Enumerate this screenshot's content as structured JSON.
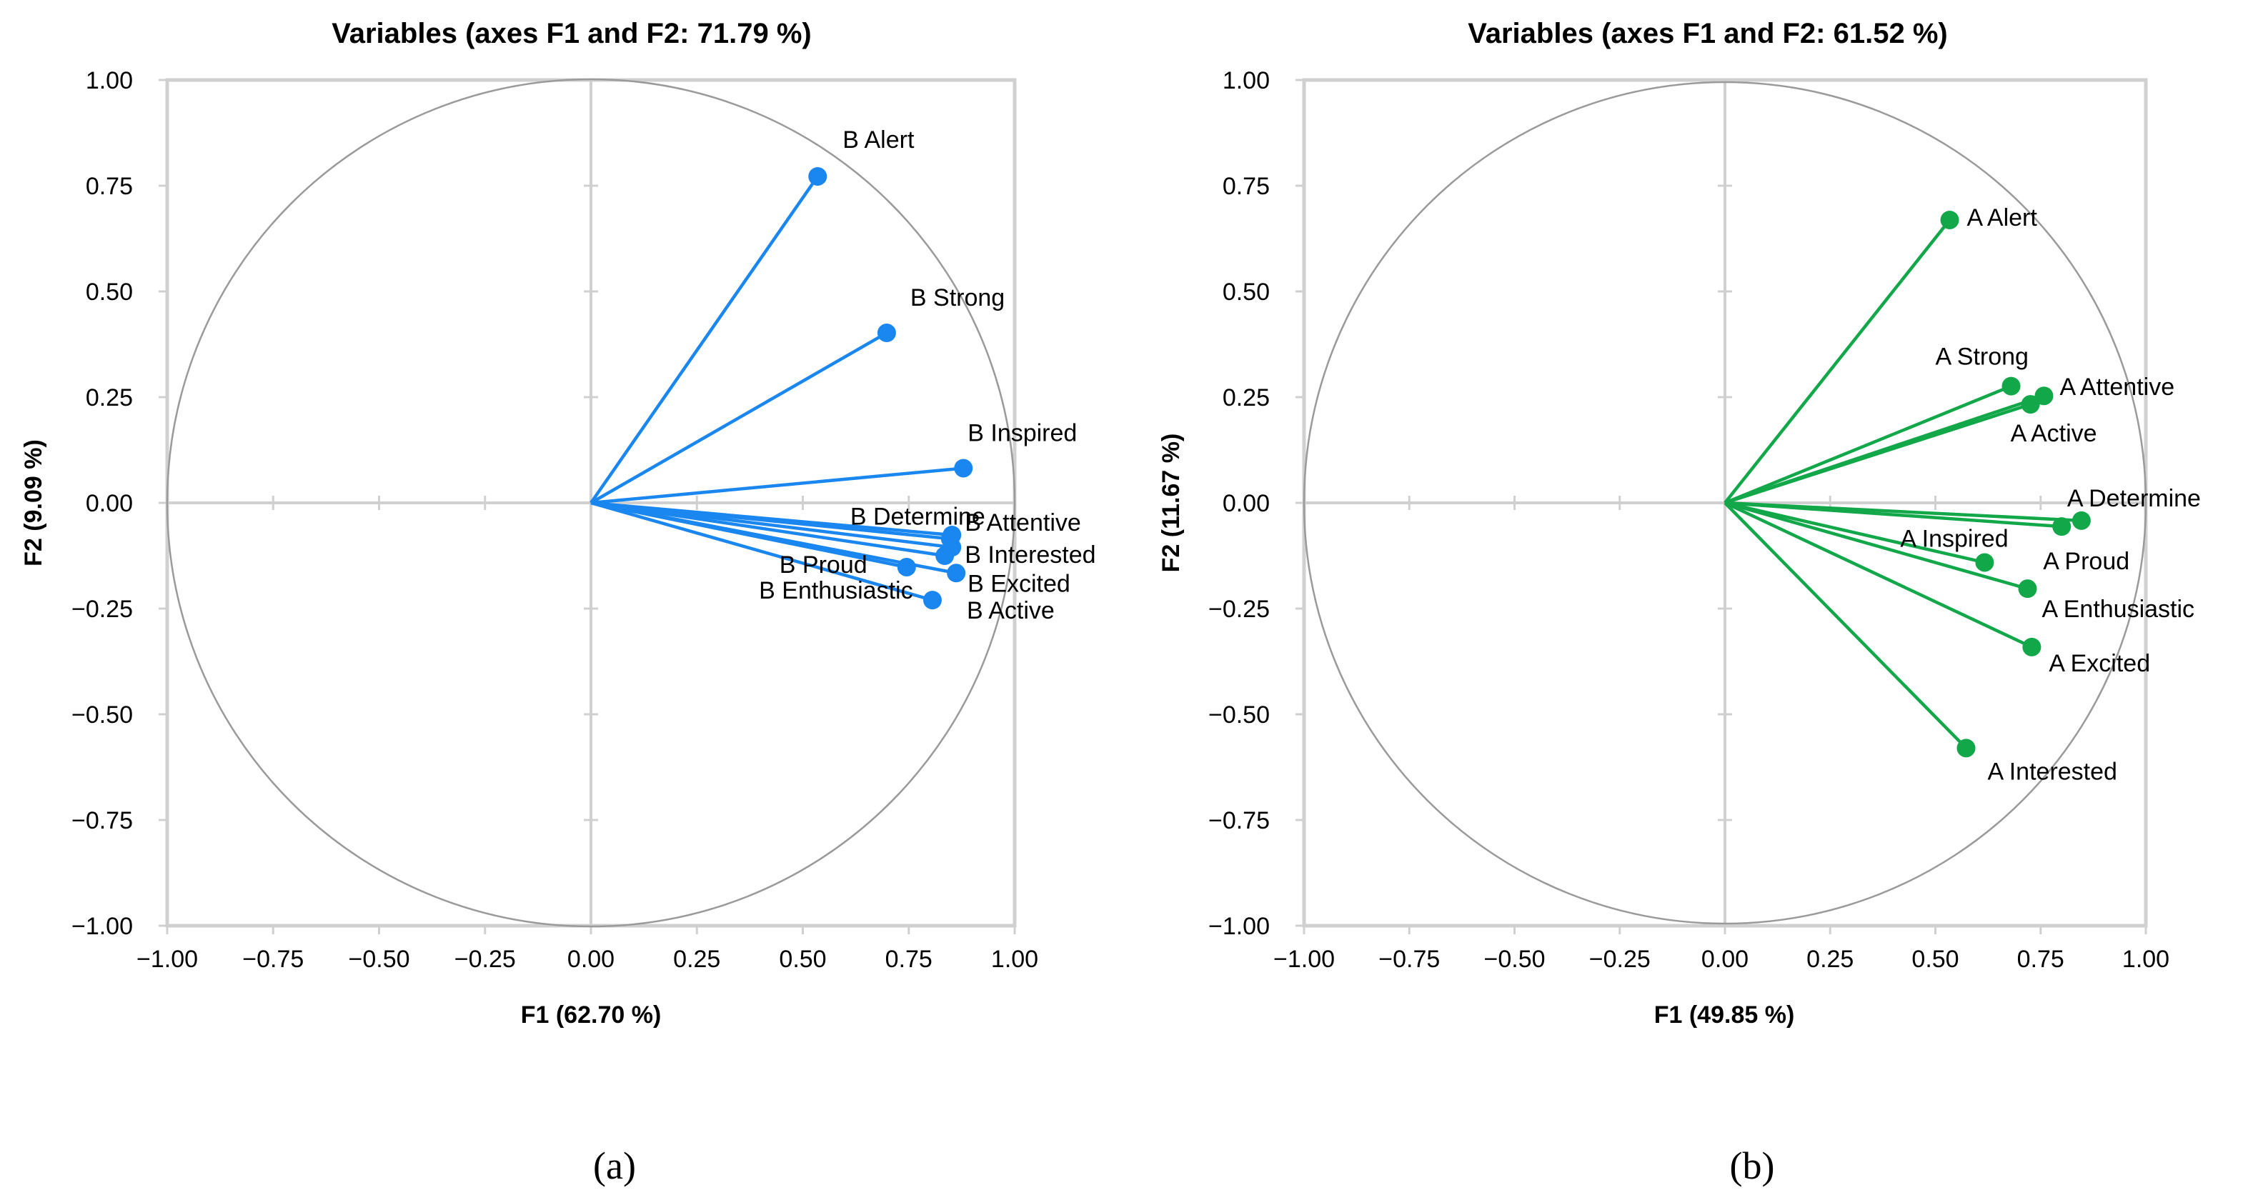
{
  "chart_data": [
    {
      "type": "scatter",
      "title": "Variables (axes F1 and F2: 71.79 %)",
      "xlabel": "F1 (62.70 %)",
      "ylabel": "F2 (9.09 %)",
      "xlim": [
        -1,
        1
      ],
      "ylim": [
        -1,
        1
      ],
      "xticks": [
        "−1.00",
        "−0.75",
        "−0.50",
        "−0.25",
        "0.00",
        "0.25",
        "0.50",
        "0.75",
        "1.00"
      ],
      "yticks": [
        "1.00",
        "0.75",
        "0.50",
        "0.25",
        "0.00",
        "−0.25",
        "−0.50",
        "−0.75",
        "−1.00"
      ],
      "grid": false,
      "correlation_circle": true,
      "vectors_from_origin": true,
      "color": "#1a87f0",
      "panel_label": "(a)",
      "points": [
        {
          "label": "B Alert",
          "x": 0.535,
          "y": 0.772
        },
        {
          "label": "B Strong",
          "x": 0.698,
          "y": 0.402
        },
        {
          "label": "B Inspired",
          "x": 0.879,
          "y": 0.082
        },
        {
          "label": "B Determine",
          "x": 0.848,
          "y": -0.085
        },
        {
          "label": "B Attentive",
          "x": 0.852,
          "y": -0.076
        },
        {
          "label": "B Interested",
          "x": 0.852,
          "y": -0.105
        },
        {
          "label": "B Proud",
          "x": 0.745,
          "y": -0.152
        },
        {
          "label": "B Excited",
          "x": 0.862,
          "y": -0.166
        },
        {
          "label": "B Active",
          "x": 0.806,
          "y": -0.23
        },
        {
          "label": "B Enthusiastic",
          "x": 0.835,
          "y": -0.125
        }
      ]
    },
    {
      "type": "scatter",
      "title": "Variables (axes F1 and F2: 61.52 %)",
      "xlabel": "F1 (49.85 %)",
      "ylabel": "F2 (11.67 %)",
      "xlim": [
        -1,
        1
      ],
      "ylim": [
        -1,
        1
      ],
      "xticks": [
        "−1.00",
        "−0.75",
        "−0.50",
        "−0.25",
        "0.00",
        "0.25",
        "0.50",
        "0.75",
        "1.00"
      ],
      "yticks": [
        "1.00",
        "0.75",
        "0.50",
        "0.25",
        "0.00",
        "−0.25",
        "−0.50",
        "−0.75",
        "−1.00"
      ],
      "grid": false,
      "correlation_circle": true,
      "vectors_from_origin": true,
      "color": "#12a84a",
      "panel_label": "(b)",
      "points": [
        {
          "label": "A Alert",
          "x": 0.534,
          "y": 0.669
        },
        {
          "label": "A Strong",
          "x": 0.68,
          "y": 0.276
        },
        {
          "label": "A Attentive",
          "x": 0.758,
          "y": 0.253
        },
        {
          "label": "A Active",
          "x": 0.726,
          "y": 0.233
        },
        {
          "label": "A Determine",
          "x": 0.847,
          "y": -0.042
        },
        {
          "label": "A Proud",
          "x": 0.8,
          "y": -0.056
        },
        {
          "label": "A Inspired",
          "x": 0.617,
          "y": -0.141
        },
        {
          "label": "A Enthusiastic",
          "x": 0.719,
          "y": -0.203
        },
        {
          "label": "A Excited",
          "x": 0.729,
          "y": -0.341
        },
        {
          "label": "A Interested",
          "x": 0.573,
          "y": -0.58
        }
      ]
    }
  ]
}
